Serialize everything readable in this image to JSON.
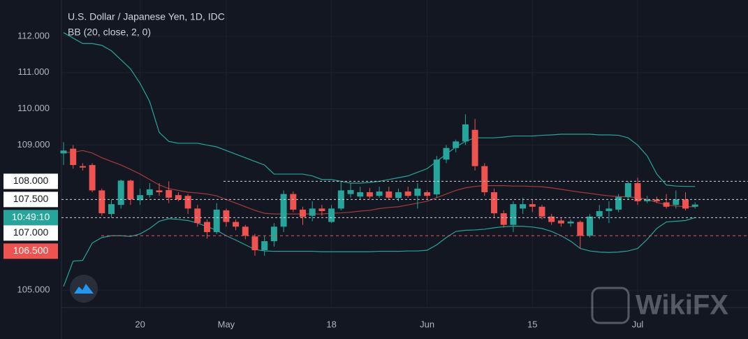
{
  "chart_data": {
    "type": "candlestick",
    "title": "U.S. Dollar / Japanese Yen, 1D, IDC",
    "indicator": {
      "label": "BB (20, close, 2, 0)",
      "band_color": "#26a69a",
      "basis_color": "#a63b3a",
      "upper": [
        112.1,
        111.95,
        111.8,
        111.8,
        111.75,
        111.6,
        111.35,
        111.1,
        110.7,
        110.2,
        109.35,
        109.1,
        109.05,
        109.05,
        109.05,
        109.0,
        108.95,
        108.85,
        108.75,
        108.65,
        108.55,
        108.45,
        108.2,
        108.2,
        108.2,
        108.2,
        108.15,
        108.05,
        108.05,
        108.0,
        107.95,
        107.95,
        107.97,
        108.0,
        108.05,
        108.1,
        108.15,
        108.25,
        108.35,
        108.55,
        108.75,
        108.95,
        109.1,
        109.2,
        109.2,
        109.2,
        109.22,
        109.25,
        109.25,
        109.25,
        109.27,
        109.28,
        109.3,
        109.3,
        109.3,
        109.3,
        109.28,
        109.28,
        109.27,
        109.2,
        109.0,
        108.7,
        108.2,
        107.9,
        107.87,
        107.86,
        107.86
      ],
      "basis": [
        108.8,
        108.8,
        108.85,
        108.78,
        108.65,
        108.55,
        108.45,
        108.33,
        108.2,
        108.05,
        107.9,
        107.8,
        107.75,
        107.7,
        107.68,
        107.65,
        107.6,
        107.5,
        107.4,
        107.3,
        107.2,
        107.12,
        107.1,
        107.1,
        107.1,
        107.1,
        107.1,
        107.1,
        107.12,
        107.13,
        107.15,
        107.18,
        107.2,
        107.25,
        107.28,
        107.3,
        107.35,
        107.4,
        107.45,
        107.55,
        107.65,
        107.75,
        107.82,
        107.86,
        107.88,
        107.88,
        107.88,
        107.87,
        107.87,
        107.86,
        107.85,
        107.82,
        107.78,
        107.74,
        107.7,
        107.67,
        107.63,
        107.6,
        107.58,
        107.57,
        107.55,
        107.5,
        107.42,
        107.35,
        107.32,
        107.3,
        107.3
      ],
      "lower": [
        105.1,
        105.8,
        105.82,
        106.3,
        106.45,
        106.5,
        106.5,
        106.48,
        106.55,
        106.7,
        106.9,
        106.97,
        106.95,
        106.92,
        106.85,
        106.75,
        106.65,
        106.5,
        106.38,
        106.25,
        106.12,
        106.08,
        106.07,
        106.07,
        106.07,
        106.07,
        106.07,
        106.06,
        106.06,
        106.06,
        106.06,
        106.06,
        106.06,
        106.07,
        106.07,
        106.07,
        106.08,
        106.08,
        106.1,
        106.25,
        106.45,
        106.62,
        106.65,
        106.66,
        106.68,
        106.72,
        106.75,
        106.76,
        106.76,
        106.74,
        106.7,
        106.62,
        106.5,
        106.35,
        106.15,
        106.08,
        106.05,
        106.04,
        106.05,
        106.08,
        106.15,
        106.4,
        106.7,
        106.88,
        106.9,
        106.92,
        107.0
      ]
    },
    "categories": [
      null,
      null,
      null,
      null,
      null,
      null,
      null,
      null,
      "20",
      null,
      null,
      null,
      null,
      null,
      null,
      null,
      null,
      "May",
      null,
      null,
      null,
      null,
      null,
      null,
      null,
      null,
      null,
      null,
      "18",
      null,
      null,
      null,
      null,
      null,
      null,
      null,
      null,
      null,
      "Jun",
      null,
      null,
      null,
      null,
      null,
      null,
      null,
      null,
      null,
      null,
      "15",
      null,
      null,
      null,
      null,
      null,
      null,
      null,
      null,
      null,
      null,
      "Jul",
      null,
      null,
      null,
      null,
      null,
      null
    ],
    "open": [
      108.77,
      108.9,
      108.42,
      108.45,
      107.75,
      107.1,
      107.35,
      108.02,
      107.48,
      107.62,
      107.75,
      107.76,
      107.62,
      107.6,
      107.25,
      106.88,
      106.6,
      107.2,
      106.88,
      106.75,
      106.48,
      106.1,
      106.35,
      106.75,
      107.65,
      107.22,
      107.05,
      107.25,
      106.88,
      107.25,
      107.65,
      107.58,
      107.7,
      107.6,
      107.72,
      107.54,
      107.72,
      107.6,
      107.7,
      107.64,
      108.6,
      108.92,
      109.1,
      109.42,
      108.42,
      107.7,
      107.12,
      106.8,
      107.25,
      107.37,
      107.3,
      107.03,
      106.92,
      106.84,
      106.88,
      106.5,
      107.03,
      107.18,
      107.22,
      107.57,
      107.95,
      107.45,
      107.5,
      107.42,
      107.35,
      107.5,
      107.3
    ],
    "high": [
      109.08,
      109.0,
      108.5,
      108.5,
      107.8,
      107.5,
      108.05,
      108.05,
      107.8,
      107.95,
      107.95,
      108.0,
      107.7,
      107.65,
      107.35,
      106.95,
      107.4,
      107.25,
      106.95,
      106.8,
      106.55,
      106.5,
      106.85,
      107.75,
      107.72,
      107.3,
      107.45,
      107.35,
      107.35,
      108.0,
      107.95,
      107.85,
      107.82,
      107.85,
      107.85,
      107.8,
      107.85,
      107.95,
      107.75,
      108.7,
      109.0,
      109.15,
      109.85,
      109.72,
      108.5,
      107.8,
      107.2,
      107.45,
      107.55,
      107.5,
      107.35,
      107.1,
      106.98,
      106.95,
      106.92,
      107.1,
      107.35,
      107.45,
      107.65,
      108.0,
      108.1,
      107.6,
      107.58,
      107.65,
      107.75,
      107.7,
      107.42
    ],
    "low": [
      108.45,
      108.35,
      108.3,
      107.7,
      107.05,
      107.0,
      107.25,
      107.35,
      107.35,
      107.55,
      107.6,
      107.4,
      107.45,
      107.1,
      106.75,
      106.42,
      106.55,
      106.75,
      106.65,
      106.4,
      105.95,
      105.95,
      106.2,
      106.6,
      107.15,
      106.8,
      106.9,
      107.05,
      106.85,
      107.2,
      107.55,
      107.5,
      107.52,
      107.55,
      107.5,
      107.45,
      107.55,
      107.25,
      107.5,
      107.55,
      108.5,
      108.8,
      109.0,
      108.3,
      107.6,
      107.0,
      106.72,
      106.6,
      107.1,
      107.15,
      106.95,
      106.8,
      106.75,
      106.75,
      106.15,
      106.45,
      106.95,
      106.85,
      107.15,
      107.5,
      107.35,
      107.4,
      107.4,
      107.25,
      107.25,
      107.2,
      107.25
    ],
    "close": [
      108.85,
      108.45,
      108.38,
      107.75,
      107.12,
      107.37,
      108.02,
      107.5,
      107.62,
      107.78,
      107.7,
      107.55,
      107.5,
      107.25,
      106.85,
      106.6,
      107.22,
      106.88,
      106.75,
      106.5,
      106.1,
      106.35,
      106.75,
      107.65,
      107.22,
      107.02,
      107.25,
      107.18,
      107.25,
      107.75,
      107.76,
      107.7,
      107.58,
      107.72,
      107.55,
      107.7,
      107.6,
      107.8,
      107.6,
      108.6,
      108.92,
      109.1,
      109.57,
      108.42,
      107.7,
      107.12,
      106.8,
      107.37,
      107.37,
      107.3,
      107.03,
      106.88,
      106.84,
      106.89,
      106.5,
      107.03,
      107.18,
      107.25,
      107.57,
      107.95,
      107.45,
      107.5,
      107.45,
      107.3,
      107.5,
      107.25,
      107.36
    ],
    "up_color": "#26a69a",
    "down_color": "#ef5350",
    "ylim": [
      104.52,
      113.0
    ],
    "yticks": [
      {
        "value": 105,
        "label": "105.000"
      },
      {
        "value": 109,
        "label": "109.000"
      },
      {
        "value": 110,
        "label": "110.000"
      },
      {
        "value": 111,
        "label": "111.000"
      },
      {
        "value": 112,
        "label": "112.000"
      }
    ],
    "grid": true,
    "price_lines": [
      {
        "value": 108,
        "label": "108.000"
      },
      {
        "value": 107.5,
        "label": "107.500"
      },
      {
        "value": 107,
        "label": "107.000"
      }
    ],
    "countdown": "10:49:10",
    "alert_line": {
      "value": 106.5,
      "label": "106.500"
    },
    "watermark": "WikiFX"
  }
}
